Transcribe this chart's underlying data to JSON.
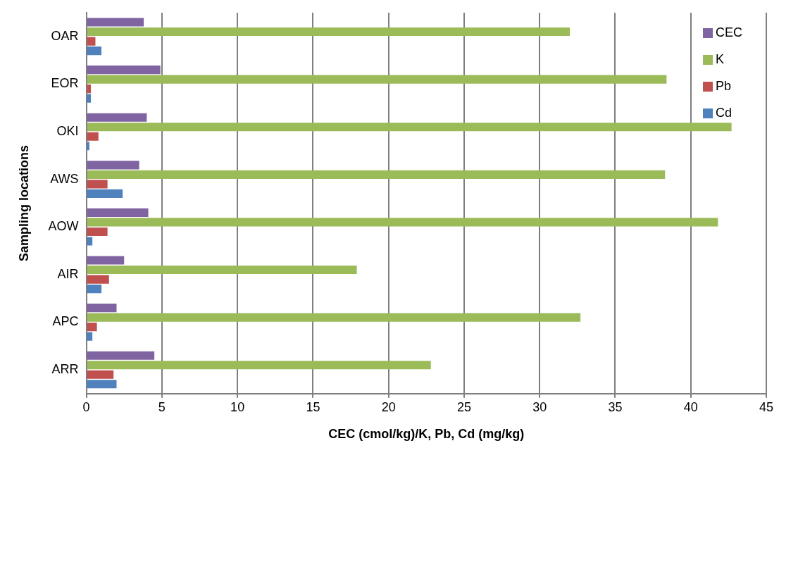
{
  "chart_data": {
    "type": "bar",
    "orientation": "horizontal",
    "xlabel": "CEC (cmol/kg)/K, Pb, Cd (mg/kg)",
    "ylabel": "Sampling locations",
    "categories": [
      "OAR",
      "EOR",
      "OKI",
      "AWS",
      "AOW",
      "AIR",
      "APC",
      "ARR"
    ],
    "series": [
      {
        "name": "CEC",
        "color": "#8064a2",
        "values": [
          3.8,
          4.9,
          4.0,
          3.5,
          4.1,
          2.5,
          2.0,
          4.5
        ]
      },
      {
        "name": "K",
        "color": "#9bbb59",
        "values": [
          32,
          38.4,
          42.7,
          38.3,
          41.8,
          17.9,
          32.7,
          22.8
        ]
      },
      {
        "name": "Pb",
        "color": "#c0504d",
        "values": [
          0.6,
          0.3,
          0.8,
          1.4,
          1.4,
          1.5,
          0.7,
          1.8
        ]
      },
      {
        "name": "Cd",
        "color": "#4f81bd",
        "values": [
          1.0,
          0.3,
          0.2,
          2.4,
          0.4,
          1.0,
          0.4,
          2.0
        ]
      }
    ],
    "xlim": [
      0,
      45
    ],
    "xticks": [
      0,
      5,
      10,
      15,
      20,
      25,
      30,
      35,
      40,
      45
    ],
    "grid": "x",
    "legend": "top right"
  }
}
